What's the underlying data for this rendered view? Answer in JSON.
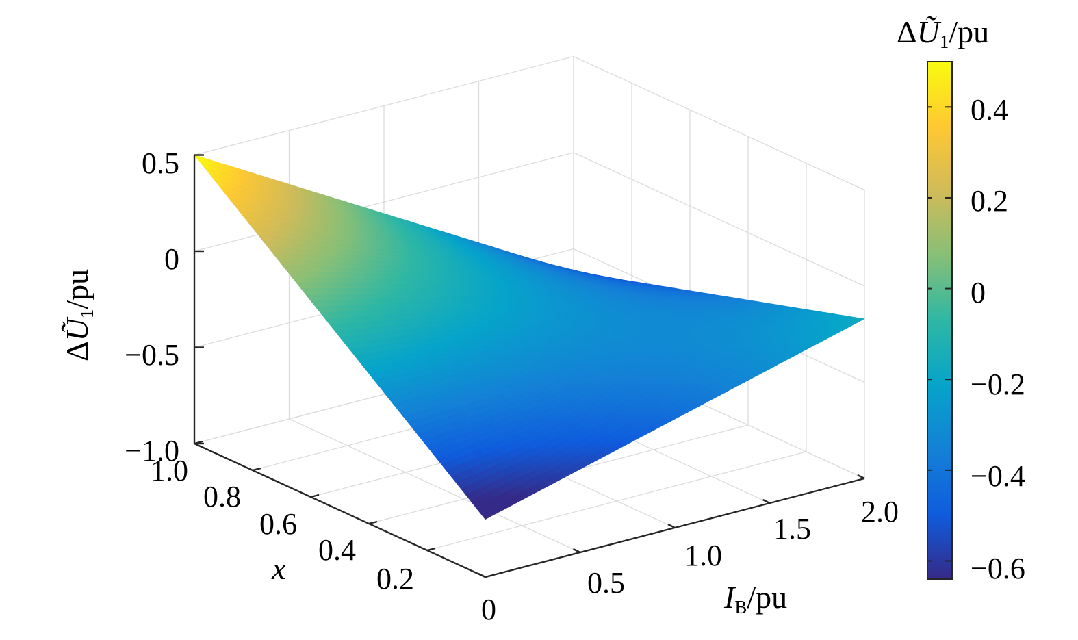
{
  "chart_data": {
    "type": "surface",
    "title": "",
    "x_axis": {
      "label_var": "x",
      "ticks": [
        "0",
        "0.2",
        "0.4",
        "0.6",
        "0.8",
        "1.0"
      ],
      "range": [
        0,
        1.0
      ]
    },
    "y_axis": {
      "label_var": "I",
      "label_sub": "B",
      "label_unit": "/pu",
      "ticks": [
        "0.5",
        "1.0",
        "1.5",
        "2.0"
      ],
      "range": [
        0,
        2.0
      ]
    },
    "z_axis": {
      "label_prefix": "Δ",
      "label_var": "Ũ",
      "label_sub": "1",
      "label_unit": "/pu",
      "ticks": [
        "0.5",
        "0",
        "−0.5",
        "−1.0"
      ],
      "range": [
        -1.0,
        0.5
      ]
    },
    "colorbar": {
      "label_prefix": "Δ",
      "label_var": "Ũ",
      "label_sub": "1",
      "label_unit": "/pu",
      "ticks": [
        "0.4",
        "0.2",
        "0",
        "−0.2",
        "−0.4",
        "−0.6"
      ],
      "range": [
        -0.64,
        0.5
      ],
      "colormap": [
        "#352a87",
        "#0f5cdd",
        "#1481d6",
        "#06a4ca",
        "#2eb7a4",
        "#87bf77",
        "#d1bb59",
        "#fec832",
        "#f9fb0e"
      ]
    },
    "surface_corners": [
      {
        "x": 1.0,
        "I_B": 0.0,
        "z": 0.5
      },
      {
        "x": 0.0,
        "I_B": 0.0,
        "z": -0.7
      },
      {
        "x": 1.0,
        "I_B": 2.0,
        "z": -0.62
      },
      {
        "x": 0.0,
        "I_B": 2.0,
        "z": -0.17
      }
    ],
    "grid": true
  }
}
